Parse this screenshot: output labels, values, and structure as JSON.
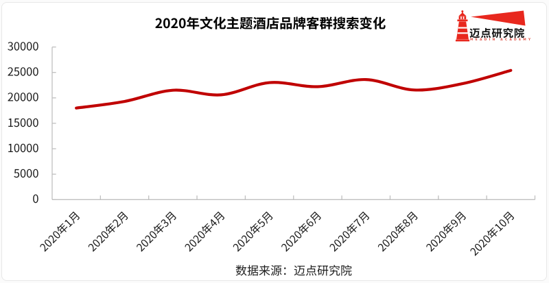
{
  "title": "2020年文化主题酒店品牌客群搜索变化",
  "source_note": "数据来源：迈点研究院",
  "logo": {
    "name": "迈点研究院",
    "subtext": "MEADIN ACADEMY",
    "brand_red": "#e8281e"
  },
  "chart_data": {
    "type": "line",
    "title": "2020年文化主题酒店品牌客群搜索变化",
    "categories": [
      "2020年1月",
      "2020年2月",
      "2020年3月",
      "2020年4月",
      "2020年5月",
      "2020年6月",
      "2020年7月",
      "2020年8月",
      "2020年9月",
      "2020年10月"
    ],
    "values": [
      18000,
      19300,
      21500,
      20600,
      23000,
      22200,
      23600,
      21550,
      22800,
      25400
    ],
    "xlabel": "",
    "ylabel": "",
    "ylim": [
      0,
      30000
    ],
    "ytick_interval": 5000,
    "yticks": [
      0,
      5000,
      10000,
      15000,
      20000,
      25000,
      30000
    ],
    "smooth": true,
    "grid": false,
    "legend": "none",
    "line_color": "#c00000",
    "line_width": 4.2,
    "axis_color": "#bfbfbf",
    "label_color": "#1a1a1a"
  }
}
